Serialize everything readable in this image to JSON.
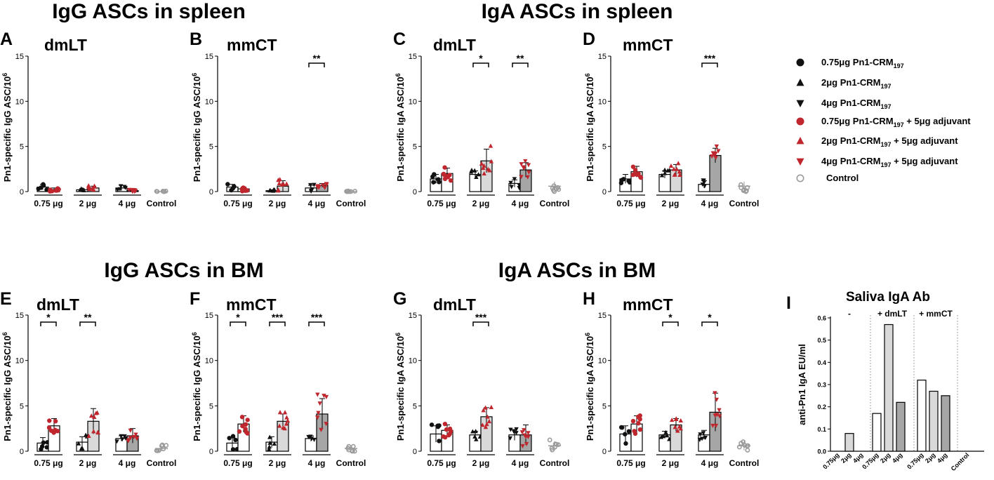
{
  "colors": {
    "red": "#c0262d",
    "black": "#111111",
    "gray": "#9b9b9b",
    "bar_light": "#d9d9d9",
    "bar_mid": "#c8c8c8",
    "bar_dark": "#a6a6a6",
    "white": "#ffffff"
  },
  "section_titles": {
    "igg_spleen": "IgG ASCs in spleen",
    "iga_spleen": "IgA ASCs in spleen",
    "igg_bm": "IgG ASCs in BM",
    "iga_bm": "IgA ASCs in BM"
  },
  "legend": [
    {
      "marker": "circle",
      "color": "black",
      "text": "0.75μg Pn1-CRM",
      "sub": "197",
      "suffix": ""
    },
    {
      "marker": "triangle-up",
      "color": "black",
      "text": "2μg Pn1-CRM",
      "sub": "197",
      "suffix": ""
    },
    {
      "marker": "triangle-down",
      "color": "black",
      "text": "4μg Pn1-CRM",
      "sub": "197",
      "suffix": ""
    },
    {
      "marker": "circle",
      "color": "red",
      "text": "0.75μg Pn1-CRM",
      "sub": "197",
      "suffix": " + 5μg adjuvant"
    },
    {
      "marker": "triangle-up",
      "color": "red",
      "text": "2μg Pn1-CRM",
      "sub": "197",
      "suffix": " + 5μg adjuvant"
    },
    {
      "marker": "triangle-down",
      "color": "red",
      "text": "4μg Pn1-CRM",
      "sub": "197",
      "suffix": " + 5μg adjuvant"
    },
    {
      "marker": "circle-open",
      "color": "gray",
      "text": "Control",
      "sub": "",
      "suffix": ""
    }
  ],
  "chart_data": [
    {
      "id": "A",
      "type": "bar",
      "panel_label": "A",
      "adjuvant": "dmLT",
      "ylabel": "Pn1-specific IgG ASC/10",
      "ylabel_sup": "6",
      "ylim": [
        0,
        15
      ],
      "yticks": [
        "0",
        "5",
        "10",
        "15"
      ],
      "categories": [
        "0.75 μg",
        "2 μg",
        "4 μg",
        "Control"
      ],
      "series": [
        {
          "name": "antigen alone",
          "values": [
            0.5,
            0.2,
            0.4,
            null
          ],
          "sd": [
            0.3,
            0.1,
            0.3,
            null
          ]
        },
        {
          "name": "antigen + adjuvant",
          "values": [
            0.2,
            0.4,
            0.1,
            null
          ],
          "sd": [
            0.2,
            0.2,
            0.1,
            null
          ]
        },
        {
          "name": "Control",
          "values": [
            null,
            null,
            null,
            0.0
          ],
          "sd": [
            null,
            null,
            null,
            0.0
          ]
        }
      ],
      "significance": []
    },
    {
      "id": "B",
      "type": "bar",
      "panel_label": "B",
      "adjuvant": "mmCT",
      "ylabel": "Pn1-specific IgG ASC/10",
      "ylabel_sup": "6",
      "ylim": [
        0,
        15
      ],
      "yticks": [
        "0",
        "5",
        "10",
        "15"
      ],
      "categories": [
        "0.75 μg",
        "2 μg",
        "4 μg",
        "Control"
      ],
      "series": [
        {
          "name": "antigen alone",
          "values": [
            0.5,
            0.1,
            0.4,
            null
          ],
          "sd": [
            0.3,
            0.1,
            0.3,
            null
          ]
        },
        {
          "name": "antigen + adjuvant",
          "values": [
            0.3,
            0.6,
            0.7,
            null
          ],
          "sd": [
            0.2,
            0.6,
            0.2,
            null
          ]
        },
        {
          "name": "Control",
          "values": [
            null,
            null,
            null,
            0.0
          ],
          "sd": [
            null,
            null,
            null,
            0.0
          ]
        }
      ],
      "significance": [
        {
          "group": 2,
          "label": "**"
        }
      ]
    },
    {
      "id": "C",
      "type": "bar",
      "panel_label": "C",
      "adjuvant": "dmLT",
      "ylabel": "Pn1-specific IgA ASC/10",
      "ylabel_sup": "6",
      "ylim": [
        0,
        15
      ],
      "yticks": [
        "0",
        "5",
        "10",
        "15"
      ],
      "categories": [
        "0.75 μg",
        "2 μg",
        "4 μg",
        "Control"
      ],
      "series": [
        {
          "name": "antigen alone",
          "values": [
            1.4,
            1.9,
            0.9,
            null
          ],
          "sd": [
            0.5,
            0.4,
            0.4,
            null
          ]
        },
        {
          "name": "antigen + adjuvant",
          "values": [
            2.0,
            3.4,
            2.4,
            null
          ],
          "sd": [
            0.6,
            1.3,
            0.8,
            null
          ]
        },
        {
          "name": "Control",
          "values": [
            null,
            null,
            null,
            0.6
          ],
          "sd": [
            null,
            null,
            null,
            0.5
          ]
        }
      ],
      "significance": [
        {
          "group": 1,
          "label": "*"
        },
        {
          "group": 2,
          "label": "**"
        }
      ]
    },
    {
      "id": "D",
      "type": "bar",
      "panel_label": "D",
      "adjuvant": "mmCT",
      "ylabel": "Pn1-specific IgA ASC/10",
      "ylabel_sup": "6",
      "ylim": [
        0,
        15
      ],
      "yticks": [
        "0",
        "5",
        "10",
        "15"
      ],
      "categories": [
        "0.75 μg",
        "2 μg",
        "4 μg",
        "Control"
      ],
      "series": [
        {
          "name": "antigen alone",
          "values": [
            1.4,
            1.9,
            0.8,
            null
          ],
          "sd": [
            0.5,
            0.4,
            0.4,
            null
          ]
        },
        {
          "name": "antigen + adjuvant",
          "values": [
            2.2,
            2.4,
            4.0,
            null
          ],
          "sd": [
            0.6,
            0.6,
            0.8,
            null
          ]
        },
        {
          "name": "Control",
          "values": [
            null,
            null,
            null,
            0.6
          ],
          "sd": [
            null,
            null,
            null,
            0.5
          ]
        }
      ],
      "significance": [
        {
          "group": 2,
          "label": "***"
        }
      ]
    },
    {
      "id": "E",
      "type": "bar",
      "panel_label": "E",
      "adjuvant": "dmLT",
      "ylabel": "Pn1-specific IgG ASC/10",
      "ylabel_sup": "6",
      "ylim": [
        0,
        15
      ],
      "yticks": [
        "0",
        "5",
        "10",
        "15"
      ],
      "categories": [
        "0.75 μg",
        "2 μg",
        "4 μg",
        "Control"
      ],
      "series": [
        {
          "name": "antigen alone",
          "values": [
            0.9,
            1.0,
            1.4,
            null
          ],
          "sd": [
            0.6,
            0.6,
            0.3,
            null
          ]
        },
        {
          "name": "antigen + adjuvant",
          "values": [
            2.8,
            3.3,
            1.7,
            null
          ],
          "sd": [
            0.8,
            1.4,
            0.8,
            null
          ]
        },
        {
          "name": "Control",
          "values": [
            null,
            null,
            null,
            0.3
          ],
          "sd": [
            null,
            null,
            null,
            0.3
          ]
        }
      ],
      "significance": [
        {
          "group": 0,
          "label": "*"
        },
        {
          "group": 1,
          "label": "**"
        }
      ]
    },
    {
      "id": "F",
      "type": "bar",
      "panel_label": "F",
      "adjuvant": "mmCT",
      "ylabel": "Pn1-specific IgG ASC/10",
      "ylabel_sup": "6",
      "ylim": [
        0,
        15
      ],
      "yticks": [
        "0",
        "5",
        "10",
        "15"
      ],
      "categories": [
        "0.75 μg",
        "2 μg",
        "4 μg",
        "Control"
      ],
      "series": [
        {
          "name": "antigen alone",
          "values": [
            0.9,
            1.0,
            1.4,
            null
          ],
          "sd": [
            0.6,
            0.6,
            0.3,
            null
          ]
        },
        {
          "name": "antigen + adjuvant",
          "values": [
            3.0,
            3.3,
            4.1,
            null
          ],
          "sd": [
            0.9,
            0.8,
            1.7,
            null
          ]
        },
        {
          "name": "Control",
          "values": [
            null,
            null,
            null,
            0.3
          ],
          "sd": [
            null,
            null,
            null,
            0.3
          ]
        }
      ],
      "significance": [
        {
          "group": 0,
          "label": "*"
        },
        {
          "group": 1,
          "label": "***"
        },
        {
          "group": 2,
          "label": "***"
        }
      ]
    },
    {
      "id": "G",
      "type": "bar",
      "panel_label": "G",
      "adjuvant": "dmLT",
      "ylabel": "Pn1-specific IgA ASC/10",
      "ylabel_sup": "6",
      "ylim": [
        0,
        15
      ],
      "yticks": [
        "0",
        "5",
        "10",
        "15"
      ],
      "categories": [
        "0.75 μg",
        "2 μg",
        "4 μg",
        "Control"
      ],
      "series": [
        {
          "name": "antigen alone",
          "values": [
            1.9,
            1.8,
            1.8,
            null
          ],
          "sd": [
            0.9,
            0.4,
            0.6,
            null
          ]
        },
        {
          "name": "antigen + adjuvant",
          "values": [
            2.3,
            3.8,
            1.8,
            null
          ],
          "sd": [
            0.6,
            1.0,
            1.1,
            null
          ]
        },
        {
          "name": "Control",
          "values": [
            null,
            null,
            null,
            0.6
          ],
          "sd": [
            null,
            null,
            null,
            0.5
          ]
        }
      ],
      "significance": [
        {
          "group": 1,
          "label": "***"
        }
      ]
    },
    {
      "id": "H",
      "type": "bar",
      "panel_label": "H",
      "adjuvant": "mmCT",
      "ylabel": "Pn1-specific IgA ASC/10",
      "ylabel_sup": "6",
      "ylim": [
        0,
        15
      ],
      "yticks": [
        "0",
        "5",
        "10",
        "15"
      ],
      "categories": [
        "0.75 μg",
        "2 μg",
        "4 μg",
        "Control"
      ],
      "series": [
        {
          "name": "antigen alone",
          "values": [
            1.9,
            1.8,
            1.8,
            null
          ],
          "sd": [
            0.9,
            0.4,
            0.5,
            null
          ]
        },
        {
          "name": "antigen + adjuvant",
          "values": [
            3.0,
            2.9,
            4.3,
            null
          ],
          "sd": [
            0.9,
            0.7,
            2.1,
            null
          ]
        },
        {
          "name": "Control",
          "values": [
            null,
            null,
            null,
            0.6
          ],
          "sd": [
            null,
            null,
            null,
            0.5
          ]
        }
      ],
      "significance": [
        {
          "group": 1,
          "label": "*"
        },
        {
          "group": 2,
          "label": "*"
        }
      ]
    },
    {
      "id": "I",
      "type": "bar",
      "panel_label": "I",
      "title": "Saliva IgA Ab",
      "ylabel": "anti-Pn1 IgA EU/ml",
      "ylim": [
        0,
        0.6
      ],
      "yticks": [
        "0.0",
        "0.1",
        "0.2",
        "0.3",
        "0.4",
        "0.5",
        "0.6"
      ],
      "groups": [
        "-",
        "+ dmLT",
        "+ mmCT",
        ""
      ],
      "categories": [
        "0.75μg",
        "2μg",
        "4μg",
        "0.75μg",
        "2μg",
        "4μg",
        "0.75μg",
        "2μg",
        "4μg",
        "Control"
      ],
      "values": [
        0,
        0.08,
        0,
        0.17,
        0.57,
        0.22,
        0.32,
        0.27,
        0.25,
        0
      ]
    }
  ]
}
